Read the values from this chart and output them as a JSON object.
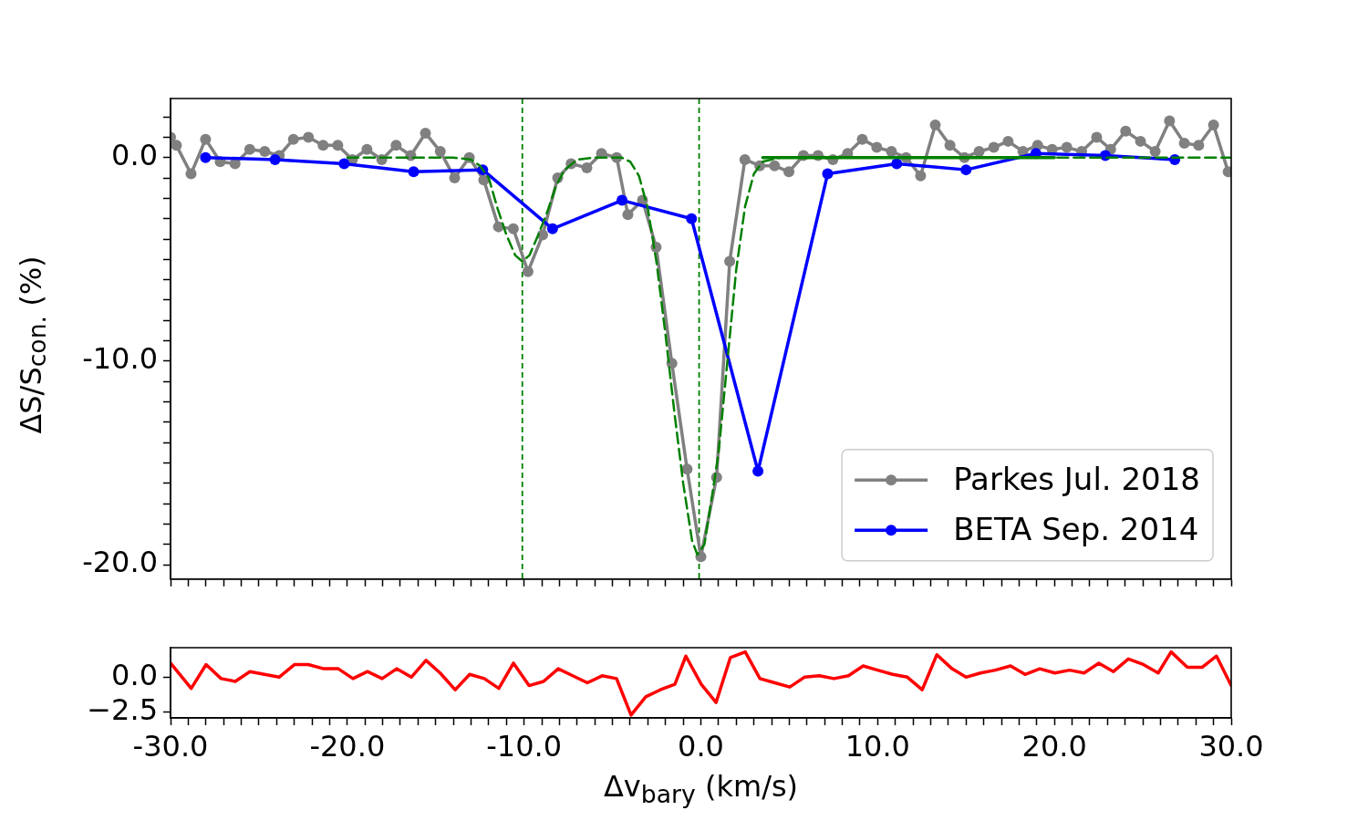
{
  "chart_data": [
    {
      "type": "line",
      "ylabel": "ΔS/S$_{con.}$  (%)",
      "xlim": [
        -30,
        30
      ],
      "ylim": [
        -20.7,
        2.9
      ],
      "grid": false,
      "legend": "bottom right",
      "tick_labels": "y",
      "xticks": [
        {
          "value": -30,
          "label": null
        },
        {
          "value": -29,
          "label": null
        },
        {
          "value": -28,
          "label": null
        },
        {
          "value": -27,
          "label": null
        },
        {
          "value": -26,
          "label": null
        },
        {
          "value": -25,
          "label": null
        },
        {
          "value": -24,
          "label": null
        },
        {
          "value": -23,
          "label": null
        },
        {
          "value": -22,
          "label": null
        },
        {
          "value": -21,
          "label": null
        },
        {
          "value": -20,
          "label": null
        },
        {
          "value": -19,
          "label": null
        },
        {
          "value": -18,
          "label": null
        },
        {
          "value": -17,
          "label": null
        },
        {
          "value": -16,
          "label": null
        },
        {
          "value": -15,
          "label": null
        },
        {
          "value": -14,
          "label": null
        },
        {
          "value": -13,
          "label": null
        },
        {
          "value": -12,
          "label": null
        },
        {
          "value": -11,
          "label": null
        },
        {
          "value": -10,
          "label": null
        },
        {
          "value": -9,
          "label": null
        },
        {
          "value": -8,
          "label": null
        },
        {
          "value": -7,
          "label": null
        },
        {
          "value": -6,
          "label": null
        },
        {
          "value": -5,
          "label": null
        },
        {
          "value": -4,
          "label": null
        },
        {
          "value": -3,
          "label": null
        },
        {
          "value": -2,
          "label": null
        },
        {
          "value": -1,
          "label": null
        },
        {
          "value": 0,
          "label": null
        },
        {
          "value": 1,
          "label": null
        },
        {
          "value": 2,
          "label": null
        },
        {
          "value": 3,
          "label": null
        },
        {
          "value": 4,
          "label": null
        },
        {
          "value": 5,
          "label": null
        },
        {
          "value": 6,
          "label": null
        },
        {
          "value": 7,
          "label": null
        },
        {
          "value": 8,
          "label": null
        },
        {
          "value": 9,
          "label": null
        },
        {
          "value": 10,
          "label": null
        },
        {
          "value": 11,
          "label": null
        },
        {
          "value": 12,
          "label": null
        },
        {
          "value": 13,
          "label": null
        },
        {
          "value": 14,
          "label": null
        },
        {
          "value": 15,
          "label": null
        },
        {
          "value": 16,
          "label": null
        },
        {
          "value": 17,
          "label": null
        },
        {
          "value": 18,
          "label": null
        },
        {
          "value": 19,
          "label": null
        },
        {
          "value": 20,
          "label": null
        },
        {
          "value": 21,
          "label": null
        },
        {
          "value": 22,
          "label": null
        },
        {
          "value": 23,
          "label": null
        },
        {
          "value": 24,
          "label": null
        },
        {
          "value": 25,
          "label": null
        },
        {
          "value": 26,
          "label": null
        },
        {
          "value": 27,
          "label": null
        },
        {
          "value": 28,
          "label": null
        },
        {
          "value": 29,
          "label": null
        },
        {
          "value": 30,
          "label": null
        }
      ],
      "yticks": [
        {
          "value": -20,
          "label": "-20.0"
        },
        {
          "value": -19,
          "label": null
        },
        {
          "value": -18,
          "label": null
        },
        {
          "value": -17,
          "label": null
        },
        {
          "value": -16,
          "label": null
        },
        {
          "value": -15,
          "label": null
        },
        {
          "value": -14,
          "label": null
        },
        {
          "value": -13,
          "label": null
        },
        {
          "value": -12,
          "label": null
        },
        {
          "value": -11,
          "label": null
        },
        {
          "value": -10,
          "label": "-10.0"
        },
        {
          "value": -9,
          "label": null
        },
        {
          "value": -8,
          "label": null
        },
        {
          "value": -7,
          "label": null
        },
        {
          "value": -6,
          "label": null
        },
        {
          "value": -5,
          "label": null
        },
        {
          "value": -4,
          "label": null
        },
        {
          "value": -3,
          "label": null
        },
        {
          "value": -2,
          "label": null
        },
        {
          "value": -1,
          "label": null
        },
        {
          "value": 0,
          "label": "0.0"
        },
        {
          "value": 1,
          "label": null
        },
        {
          "value": 2,
          "label": null
        }
      ],
      "ref_lines": [
        {
          "axis": "x",
          "value": -10.1,
          "color": "#008000",
          "line_style": "dashed"
        },
        {
          "axis": "x",
          "value": -0.1,
          "color": "#008000",
          "line_style": "dashed"
        }
      ],
      "series": [
        {
          "name": "Parkes Jul. 2018",
          "color": "#808080",
          "marker": "circle",
          "x": [
            -30.0,
            -29.67,
            -28.84,
            -28.02,
            -27.19,
            -26.35,
            -25.52,
            -24.67,
            -23.85,
            -23.05,
            -22.2,
            -21.37,
            -20.54,
            -19.71,
            -18.89,
            -18.05,
            -17.24,
            -16.41,
            -15.58,
            -14.74,
            -13.93,
            -13.1,
            -12.28,
            -11.45,
            -10.61,
            -9.78,
            -8.95,
            -8.1,
            -7.34,
            -6.45,
            -5.62,
            -4.76,
            -4.13,
            -3.3,
            -2.53,
            -1.64,
            -0.78,
            0.0,
            0.89,
            1.63,
            2.49,
            3.33,
            4.17,
            4.98,
            5.8,
            6.63,
            7.47,
            8.3,
            9.13,
            9.95,
            10.78,
            11.61,
            12.43,
            13.26,
            14.09,
            14.91,
            15.74,
            16.57,
            17.38,
            18.22,
            19.05,
            19.87,
            20.7,
            21.54,
            22.39,
            23.18,
            24.03,
            24.87,
            25.7,
            26.51,
            27.35,
            28.16,
            29.0,
            29.83
          ],
          "values": [
            1.0,
            0.6,
            -0.8,
            0.9,
            -0.2,
            -0.3,
            0.4,
            0.3,
            0.1,
            0.9,
            1.0,
            0.6,
            0.6,
            -0.1,
            0.4,
            -0.1,
            0.6,
            0.1,
            1.2,
            0.3,
            -1.0,
            0.0,
            -1.1,
            -3.4,
            -3.5,
            -5.6,
            -3.8,
            -1.0,
            -0.3,
            -0.5,
            0.2,
            0.0,
            -2.8,
            -2.1,
            -4.4,
            -10.1,
            -15.3,
            -19.6,
            -15.7,
            -5.1,
            -0.1,
            -0.4,
            -0.4,
            -0.7,
            0.1,
            0.1,
            -0.1,
            0.2,
            0.9,
            0.5,
            0.3,
            0.0,
            -0.9,
            1.6,
            0.6,
            0.0,
            0.3,
            0.5,
            0.8,
            0.3,
            0.6,
            0.4,
            0.5,
            0.3,
            1.0,
            0.4,
            1.3,
            0.8,
            0.3,
            1.8,
            0.7,
            0.6,
            1.6,
            -0.7
          ]
        },
        {
          "name": "BETA Sep. 2014",
          "color": "#0000ff",
          "marker": "circle",
          "x": [
            -28.02,
            -24.09,
            -20.18,
            -16.25,
            -12.34,
            -8.39,
            -4.46,
            -0.53,
            3.23,
            7.17,
            11.08,
            15.0,
            18.95,
            22.88,
            26.81
          ],
          "values": [
            0.0,
            -0.1,
            -0.3,
            -0.7,
            -0.6,
            -3.5,
            -2.1,
            -3.0,
            -15.4,
            -0.8,
            -0.3,
            -0.6,
            0.2,
            0.1,
            -0.1
          ]
        },
        {
          "type": "line",
          "color": "#008000",
          "marker": "none",
          "line_style": "dashed",
          "x": [
            -20,
            -14,
            -13,
            -12.5,
            -12,
            -11.5,
            -11,
            -10.5,
            -10.1,
            -9.7,
            -9.2,
            -8.7,
            -8.2,
            -7.7,
            -7,
            -6,
            -4.5,
            -4,
            -3.5,
            -3,
            -2.5,
            -2,
            -1.5,
            -1,
            -0.5,
            -0.2,
            0.2,
            0.6,
            1,
            1.5,
            2,
            2.5,
            3,
            3.5,
            4.5,
            20,
            30
          ],
          "values": [
            0,
            0,
            -0.1,
            -0.4,
            -1.0,
            -2.5,
            -3.8,
            -4.8,
            -5.1,
            -4.8,
            -3.8,
            -2.7,
            -1.4,
            -0.6,
            -0.1,
            0,
            0,
            -0.2,
            -0.9,
            -2.5,
            -5.2,
            -8.7,
            -12.5,
            -16.0,
            -18.8,
            -19.5,
            -19.0,
            -16.8,
            -14.5,
            -10.0,
            -5.5,
            -2.4,
            -0.8,
            -0.2,
            0,
            0,
            0
          ]
        },
        {
          "type": "line",
          "color": "#008000",
          "marker": "none",
          "line_style": "solid",
          "x": [
            3.5,
            20
          ],
          "values": [
            0,
            0
          ]
        }
      ]
    },
    {
      "type": "line",
      "xlabel": "Δv$_{bary}$ (km/s)",
      "xlim": [
        -30,
        30
      ],
      "ylim": [
        -2.9,
        2.1
      ],
      "grid": false,
      "xticks": [
        {
          "value": -30,
          "label": "-30.0"
        },
        {
          "value": -29,
          "label": null
        },
        {
          "value": -28,
          "label": null
        },
        {
          "value": -27,
          "label": null
        },
        {
          "value": -26,
          "label": null
        },
        {
          "value": -25,
          "label": null
        },
        {
          "value": -24,
          "label": null
        },
        {
          "value": -23,
          "label": null
        },
        {
          "value": -22,
          "label": null
        },
        {
          "value": -21,
          "label": null
        },
        {
          "value": -20,
          "label": "-20.0"
        },
        {
          "value": -19,
          "label": null
        },
        {
          "value": -18,
          "label": null
        },
        {
          "value": -17,
          "label": null
        },
        {
          "value": -16,
          "label": null
        },
        {
          "value": -15,
          "label": null
        },
        {
          "value": -14,
          "label": null
        },
        {
          "value": -13,
          "label": null
        },
        {
          "value": -12,
          "label": null
        },
        {
          "value": -11,
          "label": null
        },
        {
          "value": -10,
          "label": "-10.0"
        },
        {
          "value": -9,
          "label": null
        },
        {
          "value": -8,
          "label": null
        },
        {
          "value": -7,
          "label": null
        },
        {
          "value": -6,
          "label": null
        },
        {
          "value": -5,
          "label": null
        },
        {
          "value": -4,
          "label": null
        },
        {
          "value": -3,
          "label": null
        },
        {
          "value": -2,
          "label": null
        },
        {
          "value": -1,
          "label": null
        },
        {
          "value": 0,
          "label": "0.0"
        },
        {
          "value": 1,
          "label": null
        },
        {
          "value": 2,
          "label": null
        },
        {
          "value": 3,
          "label": null
        },
        {
          "value": 4,
          "label": null
        },
        {
          "value": 5,
          "label": null
        },
        {
          "value": 6,
          "label": null
        },
        {
          "value": 7,
          "label": null
        },
        {
          "value": 8,
          "label": null
        },
        {
          "value": 9,
          "label": null
        },
        {
          "value": 10,
          "label": "10.0"
        },
        {
          "value": 11,
          "label": null
        },
        {
          "value": 12,
          "label": null
        },
        {
          "value": 13,
          "label": null
        },
        {
          "value": 14,
          "label": null
        },
        {
          "value": 15,
          "label": null
        },
        {
          "value": 16,
          "label": null
        },
        {
          "value": 17,
          "label": null
        },
        {
          "value": 18,
          "label": null
        },
        {
          "value": 19,
          "label": null
        },
        {
          "value": 20,
          "label": "20.0"
        },
        {
          "value": 21,
          "label": null
        },
        {
          "value": 22,
          "label": null
        },
        {
          "value": 23,
          "label": null
        },
        {
          "value": 24,
          "label": null
        },
        {
          "value": 25,
          "label": null
        },
        {
          "value": 26,
          "label": null
        },
        {
          "value": 27,
          "label": null
        },
        {
          "value": 28,
          "label": null
        },
        {
          "value": 29,
          "label": null
        },
        {
          "value": 30,
          "label": "30.0"
        }
      ],
      "yticks": [
        {
          "value": -2.5,
          "label": "−2.5"
        },
        {
          "value": 0,
          "label": "0.0"
        }
      ],
      "series": [
        {
          "color": "#ff0000",
          "marker": "none",
          "x": [
            -30.0,
            -28.83,
            -27.99,
            -27.14,
            -26.34,
            -25.51,
            -24.69,
            -23.86,
            -22.98,
            -22.21,
            -21.33,
            -20.51,
            -19.68,
            -18.86,
            -18.03,
            -17.21,
            -16.38,
            -15.55,
            -14.75,
            -13.9,
            -13.08,
            -12.25,
            -11.43,
            -10.6,
            -9.72,
            -8.9,
            -8.07,
            -7.25,
            -6.42,
            -5.59,
            -4.77,
            -3.95,
            -3.12,
            -2.3,
            -1.47,
            -0.85,
            0.02,
            0.86,
            1.67,
            2.51,
            3.34,
            4.18,
            5.03,
            5.86,
            6.7,
            7.53,
            8.35,
            9.18,
            10.0,
            10.85,
            11.68,
            12.52,
            13.35,
            14.21,
            15.0,
            15.82,
            16.65,
            17.52,
            18.34,
            19.17,
            20.03,
            20.86,
            21.68,
            22.51,
            23.34,
            24.18,
            25.03,
            25.87,
            26.6,
            27.52,
            28.35,
            29.17,
            30.0
          ],
          "values": [
            1.0,
            -0.8,
            0.9,
            -0.1,
            -0.3,
            0.4,
            0.2,
            0.0,
            0.9,
            0.9,
            0.6,
            0.6,
            -0.1,
            0.4,
            -0.1,
            0.6,
            0.0,
            1.2,
            0.3,
            -0.9,
            0.2,
            -0.1,
            -0.8,
            1.0,
            -0.6,
            -0.3,
            0.6,
            0.1,
            -0.4,
            0.1,
            -0.1,
            -2.7,
            -1.4,
            -0.9,
            -0.5,
            1.5,
            -0.5,
            -1.8,
            1.4,
            1.8,
            -0.1,
            -0.4,
            -0.7,
            0.0,
            0.1,
            -0.1,
            0.1,
            0.8,
            0.5,
            0.2,
            0.0,
            -0.9,
            1.6,
            0.6,
            0.0,
            0.3,
            0.5,
            0.8,
            0.2,
            0.6,
            0.3,
            0.5,
            0.3,
            1.0,
            0.4,
            1.3,
            0.9,
            0.3,
            1.8,
            0.7,
            0.7,
            1.5,
            -0.6
          ]
        }
      ]
    }
  ]
}
